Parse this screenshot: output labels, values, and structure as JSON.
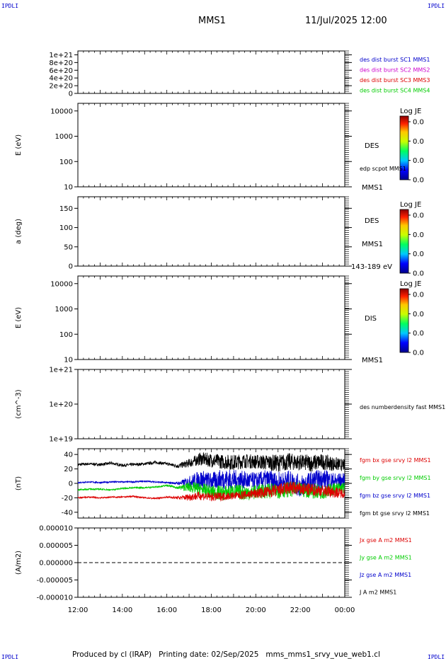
{
  "header": {
    "ipdli_left_top": "IPDLI",
    "ipdli_right_top": "IPDLI",
    "ipdli_left_bottom": "IPDLI",
    "ipdli_right_bottom": "IPDLI",
    "title": "MMS1",
    "date": "11/Jul/2025 12:00"
  },
  "footer": {
    "text": "Produced by cl (IRAP)   Printing date: 02/Sep/2025   mms_mms1_srvy_vue_web1.cl"
  },
  "colors": {
    "blue": "#0000cc",
    "magenta": "#cc00cc",
    "red": "#dd0000",
    "green": "#00cc00",
    "black": "#000000"
  },
  "chart_data": [
    {
      "type": "line",
      "id": "dist-burst",
      "ylabel": "",
      "ylim": [
        0,
        1.1e+21
      ],
      "yticks": [
        "1e+21",
        "8e+20",
        "6e+20",
        "4e+20",
        "2e+20",
        "0"
      ],
      "ytick_values": [
        1e+21,
        8e+20,
        6e+20,
        4e+20,
        2e+20,
        0
      ],
      "reference_line": 0,
      "legend": [
        {
          "label": "des dist burst SC1 MMS1",
          "color": "#0000cc"
        },
        {
          "label": "des dist burst SC2 MMS2",
          "color": "#cc00cc"
        },
        {
          "label": "des dist burst SC3 MMS3",
          "color": "#dd0000"
        },
        {
          "label": "des dist burst SC4 MMS4",
          "color": "#00cc00"
        }
      ],
      "series": []
    },
    {
      "type": "heatmap",
      "id": "des-energy",
      "ylabel": "E (eV)",
      "yscale": "log",
      "ylim": [
        10,
        20000
      ],
      "yticks": [
        "10000",
        "1000",
        "100",
        "10"
      ],
      "ytick_values": [
        10000,
        1000,
        100,
        10
      ],
      "label": "DES",
      "sublabel": "edp scpot MMS1",
      "bottom_label": "MMS1",
      "colorbar": {
        "title": "Log JE",
        "ticks": [
          "0.0",
          "0.0",
          "0.0",
          "0.0"
        ]
      }
    },
    {
      "type": "heatmap",
      "id": "des-pitch",
      "ylabel": "a (deg)",
      "ylim": [
        0,
        180
      ],
      "yticks": [
        "150",
        "100",
        "50",
        "0"
      ],
      "ytick_values": [
        150,
        100,
        50,
        0
      ],
      "label": "DES",
      "sublabel": "MMS1",
      "bottom_label": "143-189 eV",
      "colorbar": {
        "title": "Log JE",
        "ticks": [
          "0.0",
          "0.0",
          "0.0",
          "0.0"
        ]
      }
    },
    {
      "type": "heatmap",
      "id": "dis-energy",
      "ylabel": "E (eV)",
      "yscale": "log",
      "ylim": [
        10,
        20000
      ],
      "yticks": [
        "10000",
        "1000",
        "100",
        "10"
      ],
      "ytick_values": [
        10000,
        1000,
        100,
        10
      ],
      "label": "DIS",
      "bottom_label": "MMS1",
      "colorbar": {
        "title": "Log JE",
        "ticks": [
          "0.0",
          "0.0",
          "0.0",
          "0.0"
        ]
      }
    },
    {
      "type": "line",
      "id": "density",
      "ylabel": "(cm^-3)",
      "yscale": "log",
      "ylim": [
        1e+19,
        1e+21
      ],
      "yticks": [
        "1e+21",
        "1e+20",
        "1e+19"
      ],
      "ytick_values": [
        1e+21,
        1e+20,
        1e+19
      ],
      "legend": [
        {
          "label": "des numberdensity fast MMS1",
          "color": "#000000"
        }
      ],
      "series": []
    },
    {
      "type": "line",
      "id": "fgm",
      "ylabel": "(nT)",
      "ylim": [
        -48,
        48
      ],
      "yticks": [
        "40",
        "20",
        "0",
        "-20",
        "-40"
      ],
      "ytick_values": [
        40,
        20,
        0,
        -20,
        -40
      ],
      "x_hours": [
        12,
        24
      ],
      "legend": [
        {
          "label": "fgm bx gse srvy l2 MMS1",
          "color": "#dd0000"
        },
        {
          "label": "fgm by gse srvy l2 MMS1",
          "color": "#00cc00"
        },
        {
          "label": "fgm bz gse srvy l2 MMS1",
          "color": "#0000cc"
        },
        {
          "label": "fgm bt gse srvy l2 MMS1",
          "color": "#000000"
        }
      ],
      "series": [
        {
          "name": "bt",
          "color": "#000000",
          "x": [
            12.0,
            12.5,
            13.0,
            13.5,
            14.0,
            14.5,
            15.0,
            15.5,
            16.0,
            16.5,
            17.0,
            17.5,
            18.0,
            18.5,
            19.0,
            19.5,
            20.0,
            20.5,
            21.0,
            21.5,
            22.0,
            22.5,
            23.0,
            23.5,
            24.0
          ],
          "values": [
            26,
            27,
            26,
            28,
            25,
            26,
            27,
            29,
            27,
            24,
            28,
            34,
            32,
            30,
            29,
            31,
            30,
            29,
            28,
            30,
            29,
            28,
            30,
            27,
            25
          ],
          "amp": [
            2,
            2,
            2,
            2,
            2,
            2,
            2,
            2,
            2,
            3,
            6,
            9,
            10,
            10,
            11,
            10,
            10,
            11,
            12,
            12,
            11,
            12,
            11,
            10,
            8
          ]
        },
        {
          "name": "bz",
          "color": "#0000cc",
          "x": [
            12.0,
            12.5,
            13.0,
            13.5,
            14.0,
            14.5,
            15.0,
            15.5,
            16.0,
            16.5,
            17.0,
            17.5,
            18.0,
            18.5,
            19.0,
            19.5,
            20.0,
            20.5,
            21.0,
            21.5,
            22.0,
            22.5,
            23.0,
            23.5,
            24.0
          ],
          "values": [
            1,
            2,
            1,
            2,
            2,
            2,
            3,
            2,
            1,
            0,
            2,
            5,
            3,
            6,
            5,
            4,
            3,
            5,
            0,
            4,
            -4,
            2,
            6,
            3,
            4
          ],
          "amp": [
            1,
            1,
            1,
            1,
            1,
            1,
            1,
            1,
            1,
            2,
            8,
            14,
            12,
            14,
            14,
            13,
            12,
            14,
            16,
            14,
            16,
            15,
            14,
            12,
            10
          ]
        },
        {
          "name": "by",
          "color": "#00cc00",
          "x": [
            12.0,
            12.5,
            13.0,
            13.5,
            14.0,
            14.5,
            15.0,
            15.5,
            16.0,
            16.5,
            17.0,
            17.5,
            18.0,
            18.5,
            19.0,
            19.5,
            20.0,
            20.5,
            21.0,
            21.5,
            22.0,
            22.5,
            23.0,
            23.5,
            24.0
          ],
          "values": [
            -9,
            -8,
            -8,
            -9,
            -7,
            -6,
            -6,
            -5,
            -3,
            -6,
            -5,
            -8,
            -12,
            -14,
            -11,
            -13,
            -12,
            -10,
            -11,
            -8,
            -9,
            -10,
            -12,
            -8,
            -6
          ],
          "amp": [
            1,
            1,
            1,
            1,
            1,
            1,
            1,
            1,
            1,
            2,
            7,
            9,
            10,
            11,
            10,
            11,
            10,
            11,
            10,
            11,
            10,
            11,
            10,
            9,
            8
          ]
        },
        {
          "name": "bx",
          "color": "#dd0000",
          "x": [
            12.0,
            12.5,
            13.0,
            13.5,
            14.0,
            14.5,
            15.0,
            15.5,
            16.0,
            16.5,
            17.0,
            17.5,
            18.0,
            18.5,
            19.0,
            19.5,
            20.0,
            20.5,
            21.0,
            21.5,
            22.0,
            22.5,
            23.0,
            23.5,
            24.0
          ],
          "values": [
            -20,
            -19,
            -20,
            -19,
            -19,
            -18,
            -20,
            -21,
            -19,
            -20,
            -19,
            -17,
            -19,
            -18,
            -17,
            -16,
            -14,
            -12,
            -10,
            -6,
            -8,
            -9,
            -10,
            -12,
            -14
          ],
          "amp": [
            1,
            1,
            1,
            1,
            1,
            1,
            1,
            1,
            1,
            2,
            5,
            6,
            6,
            6,
            5,
            6,
            7,
            8,
            9,
            10,
            9,
            9,
            8,
            8,
            6
          ]
        }
      ]
    },
    {
      "type": "line",
      "id": "current",
      "ylabel": "(A/m2)",
      "ylim": [
        -1e-05,
        1e-05
      ],
      "yticks": [
        "0.000010",
        "0.000005",
        "0.000000",
        "-0.000005",
        "-0.000010"
      ],
      "ytick_values": [
        1e-05,
        5e-06,
        0,
        -5e-06,
        -1e-05
      ],
      "reference_line": 0,
      "legend": [
        {
          "label": "Jx gse A m2 MMS1",
          "color": "#dd0000"
        },
        {
          "label": "Jy gse A m2 MMS1",
          "color": "#00cc00"
        },
        {
          "label": "Jz gse A m2 MMS1",
          "color": "#0000cc"
        },
        {
          "label": "J A m2 MMS1",
          "color": "#000000"
        }
      ],
      "series": []
    }
  ],
  "xaxis": {
    "range_hours": [
      12,
      24
    ],
    "ticks": [
      "12:00",
      "14:00",
      "16:00",
      "18:00",
      "20:00",
      "22:00",
      "00:00"
    ],
    "tick_hours": [
      12,
      14,
      16,
      18,
      20,
      22,
      24
    ]
  }
}
